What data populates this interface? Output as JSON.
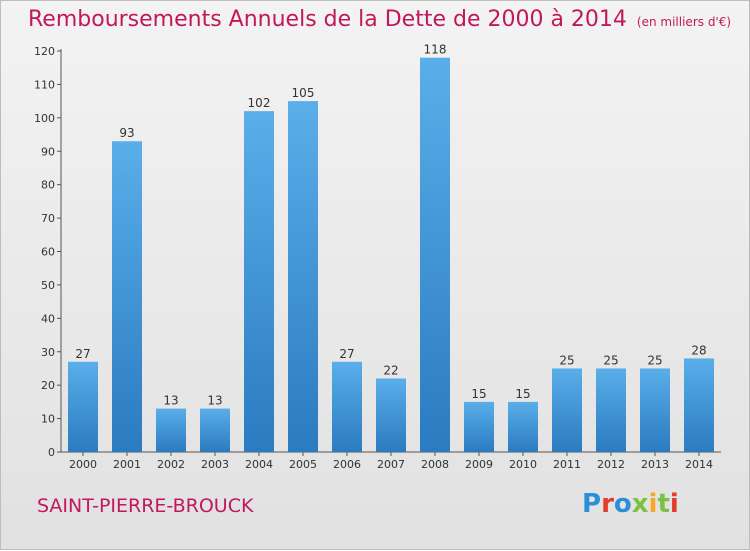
{
  "header": {
    "title": "Remboursements Annuels de la Dette de 2000 à 2014",
    "unit": "(en milliers d'€)"
  },
  "footer": {
    "commune": "SAINT-PIERRE-BROUCK",
    "logo_text": "Proxiti",
    "logo_letters": [
      "P",
      "r",
      "o",
      "x",
      "i",
      "t",
      "i"
    ]
  },
  "colors": {
    "title": "#c2185b",
    "bar_top": "#5aaee9",
    "bar_bottom": "#2a7bc0"
  },
  "chart_data": {
    "type": "bar",
    "title": "Remboursements Annuels de la Dette de 2000 à 2014",
    "subtitle": "(en milliers d'€)",
    "categories": [
      "2000",
      "2001",
      "2002",
      "2003",
      "2004",
      "2005",
      "2006",
      "2007",
      "2008",
      "2009",
      "2010",
      "2011",
      "2012",
      "2013",
      "2014"
    ],
    "values": [
      27,
      93,
      13,
      13,
      102,
      105,
      27,
      22,
      118,
      15,
      15,
      25,
      25,
      25,
      28
    ],
    "ylim": [
      0,
      120
    ],
    "yticks": [
      0,
      10,
      20,
      30,
      40,
      50,
      60,
      70,
      80,
      90,
      100,
      110,
      120
    ],
    "grid": false,
    "legend": "none"
  }
}
